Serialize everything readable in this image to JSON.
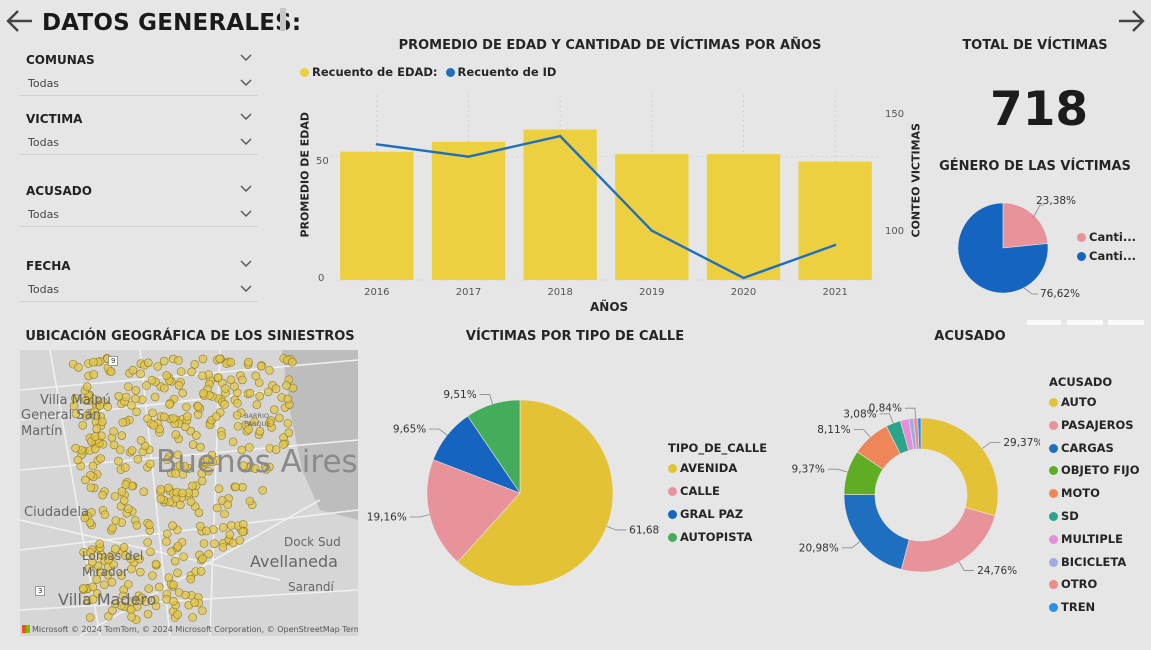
{
  "page": {
    "title": "DATOS GENERALES:"
  },
  "slicers": [
    {
      "label": "COMUNAS",
      "value": "Todas"
    },
    {
      "label": "VICTIMA",
      "value": "Todas"
    },
    {
      "label": "ACUSADO",
      "value": "Todas"
    },
    {
      "label": "FECHA",
      "value": "Todas"
    }
  ],
  "combo": {
    "title": "PROMEDIO DE EDAD Y CANTIDAD DE VÍCTIMAS POR AÑOS",
    "legend": [
      {
        "label": "Recuento de EDAD:",
        "color": "#ecd03f"
      },
      {
        "label": "Recuento de ID",
        "color": "#1f6fc1"
      }
    ],
    "xlabel": "AÑOS",
    "ylabel_left": "PROMEDIO DE EDAD",
    "ylabel_right": "CONTEO VICTIMAS",
    "left_ticks": [
      "0",
      "50"
    ],
    "right_ticks": [
      "100",
      "150"
    ]
  },
  "total": {
    "title": "TOTAL DE VÍCTIMAS",
    "value": "718"
  },
  "gender": {
    "title": "GÉNERO DE LAS VÍCTIMAS",
    "pct_a": "23,38%",
    "pct_b": "76,62%",
    "legend": [
      {
        "label": "Canti...",
        "color": "#e8929a"
      },
      {
        "label": "Canti...",
        "color": "#1565c0"
      }
    ]
  },
  "map": {
    "title": "UBICACIÓN GEOGRÁFICA DE LOS SINIESTROS",
    "labels": {
      "villa_maipu": "Villa Maipú",
      "general_san_martin": "General San Martín",
      "buenos_aires": "Buenos Aires",
      "ciudadela": "Ciudadela",
      "lomas_del_mirador": "Lomas del Mirador",
      "villa_madero": "Villa Madero",
      "dock_sud": "Dock Sud",
      "avellaneda": "Avellaneda",
      "sarandi": "Sarandí",
      "barrio_parque": "BARRIO PARQUE",
      "route_9": "9",
      "route_3": "3"
    },
    "attribution": "© 2024 TomTom, © 2024 Microsoft Corporation, © OpenStreetMap  Terms",
    "brand": "Microsoft"
  },
  "street": {
    "title": "VÍCTIMAS POR TIPO DE CALLE",
    "legend_title": "TIPO_DE_CALLE",
    "colors": [
      "#e4c235",
      "#e8929a",
      "#1565c0",
      "#43ad5b"
    ]
  },
  "accused": {
    "title": "ACUSADO",
    "legend_title": "ACUSADO",
    "colors": [
      "#e4c235",
      "#e8929a",
      "#1f6fc1",
      "#5fad22",
      "#ee8659",
      "#2aa58a",
      "#e58fd6",
      "#a3a9e3",
      "#ef8a8a",
      "#2b8ee8"
    ]
  },
  "chart_data": [
    {
      "type": "bar",
      "title": "PROMEDIO DE EDAD Y CANTIDAD DE VÍCTIMAS POR AÑOS",
      "xlabel": "AÑOS",
      "ylabel": "PROMEDIO DE EDAD",
      "categories": [
        "2016",
        "2017",
        "2018",
        "2019",
        "2020",
        "2021"
      ],
      "series": [
        {
          "name": "Recuento de EDAD:",
          "type": "bar",
          "values": [
            52,
            56,
            61,
            51,
            51,
            48
          ]
        },
        {
          "name": "Recuento de ID",
          "type": "line",
          "axis": "right",
          "values": [
            146,
            140,
            150,
            104,
            81,
            97
          ]
        }
      ],
      "ylim": [
        0,
        75
      ],
      "ylim_right": [
        80,
        170
      ],
      "legend": "top-left"
    },
    {
      "type": "pie",
      "title": "GÉNERO DE LAS VÍCTIMAS",
      "labels": [
        "Canti...",
        "Canti..."
      ],
      "values": [
        23.38,
        76.62
      ],
      "legend": "right"
    },
    {
      "type": "pie",
      "title": "VÍCTIMAS POR TIPO DE CALLE",
      "labels": [
        "AVENIDA",
        "CALLE",
        "GRAL PAZ",
        "AUTOPISTA"
      ],
      "values": [
        61.68,
        19.16,
        9.65,
        9.51
      ],
      "value_labels": [
        "61,68%",
        "19,16%",
        "9,65%",
        "9,51%"
      ],
      "legend": "right"
    },
    {
      "type": "pie",
      "title": "ACUSADO",
      "labels": [
        "AUTO",
        "PASAJEROS",
        "CARGAS",
        "OBJETO FIJO",
        "MOTO",
        "SD",
        "MULTIPLE",
        "BICICLETA",
        "OTRO",
        "TREN"
      ],
      "values": [
        29.37,
        24.76,
        20.98,
        9.37,
        8.11,
        3.08,
        1.8,
        1.0,
        0.84,
        0.69
      ],
      "value_labels": [
        "29,37%",
        "24,76%",
        "20,98%",
        "9,37%",
        "8,11%",
        "3,08%",
        "",
        "",
        "0,84%",
        ""
      ],
      "legend": "right"
    }
  ]
}
